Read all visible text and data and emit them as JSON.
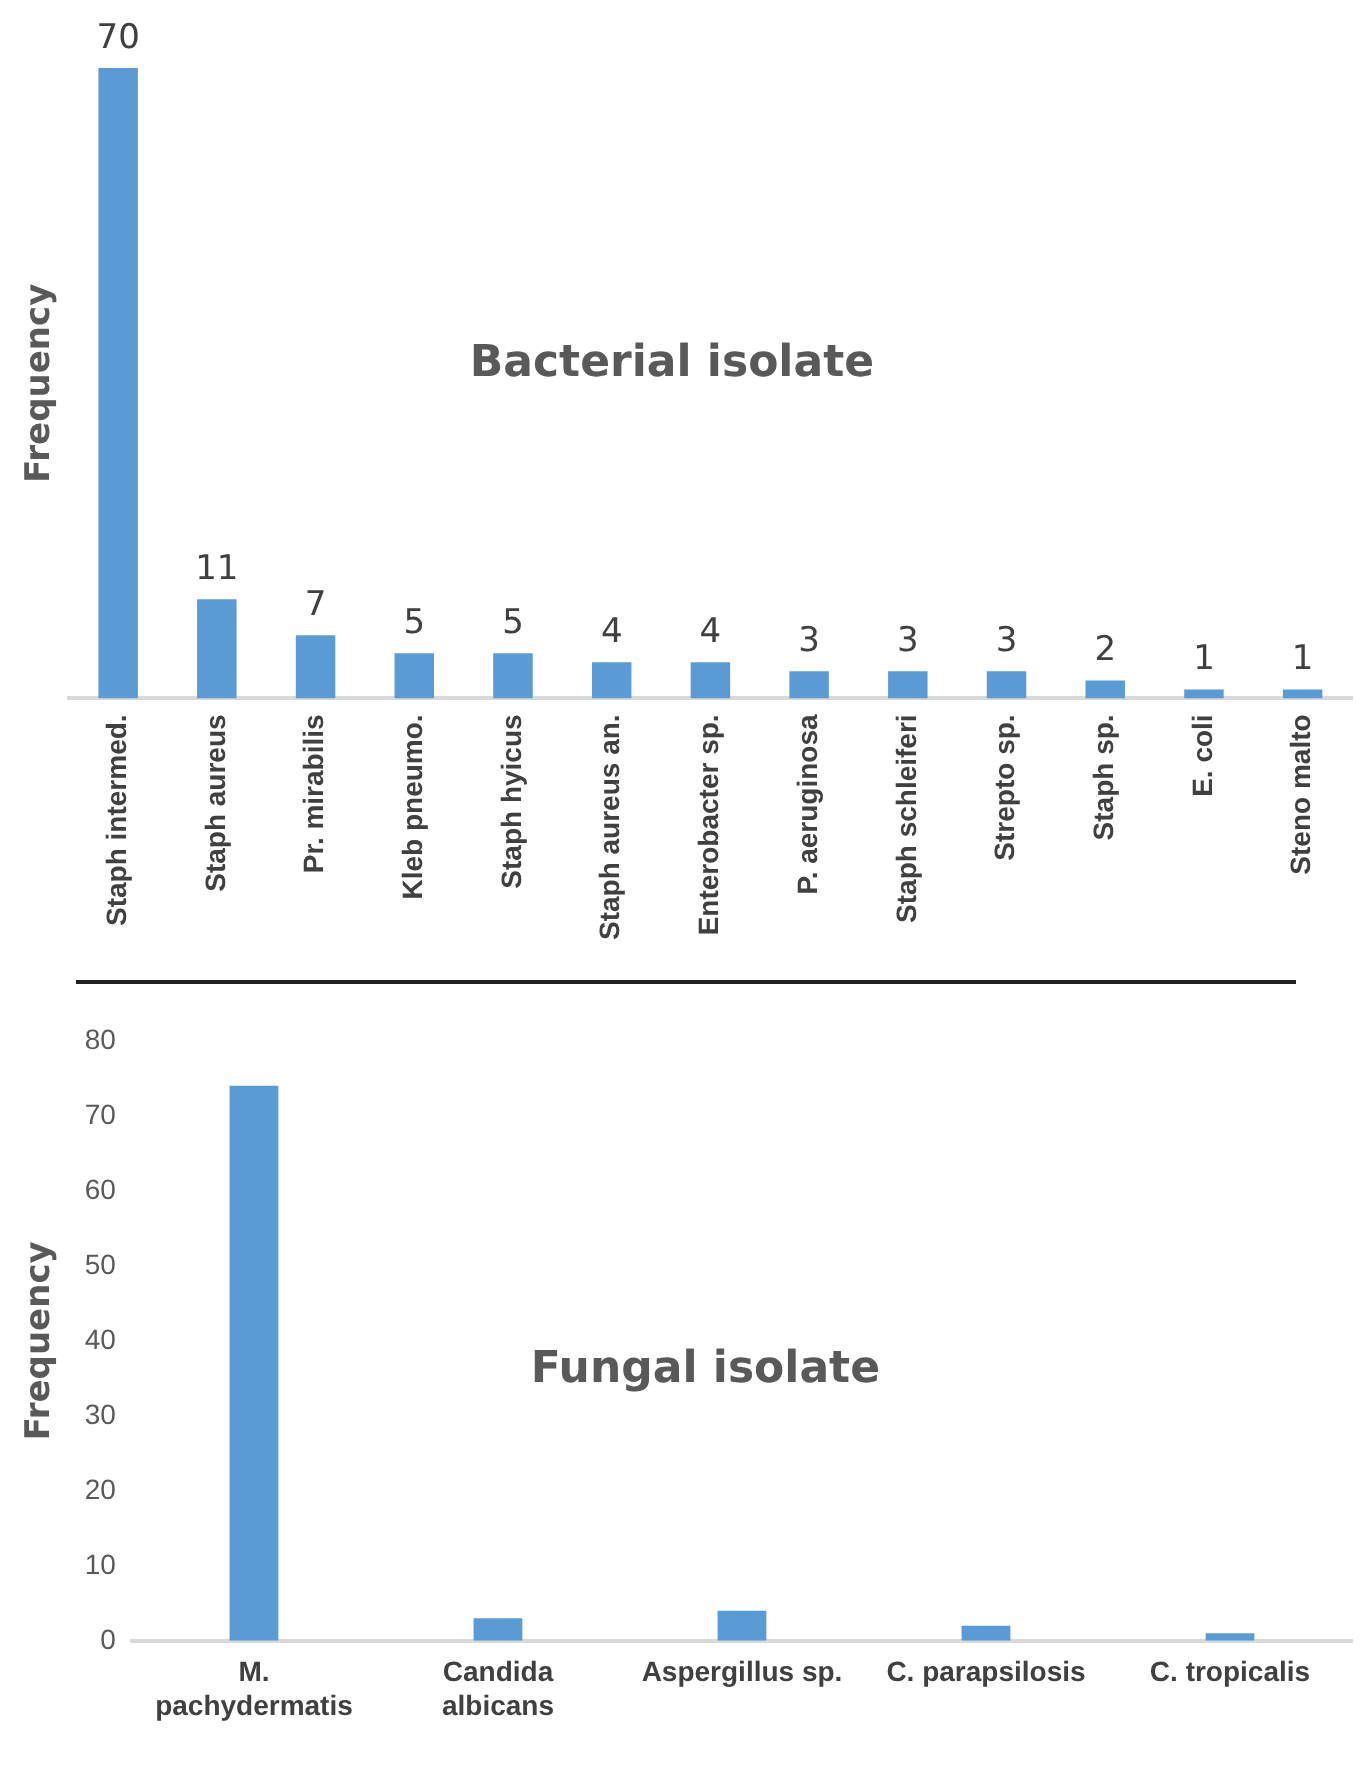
{
  "chart_data": [
    {
      "type": "bar",
      "title": "Bacterial isolate",
      "ylabel": "Frequency",
      "categories": [
        "Staph intermed.",
        "Staph aureus",
        "Pr. mirabilis",
        "Kleb pneumo.",
        "Staph hyicus",
        "Staph aureus an.",
        "Enterobacter sp.",
        "P. aeruginosa",
        "Staph schleiferi",
        "Strepto sp.",
        "Staph sp.",
        "E. coli",
        "Steno malto"
      ],
      "values": [
        70,
        11,
        7,
        5,
        5,
        4,
        4,
        3,
        3,
        3,
        2,
        1,
        1
      ],
      "color": "#5b9bd5",
      "data_labels": true,
      "grid": false,
      "legend": false,
      "tick_labels": "x"
    },
    {
      "type": "bar",
      "title": "Fungal isolate",
      "ylabel": "Frequency",
      "categories": [
        "M. pachydermatis",
        "Candida albicans",
        "Aspergillus sp.",
        "C. parapsilosis",
        "C. tropicalis"
      ],
      "values": [
        74,
        3,
        4,
        2,
        1
      ],
      "color": "#5b9bd5",
      "ylim": [
        0,
        80
      ],
      "yticks": [
        0,
        10,
        20,
        30,
        40,
        50,
        60,
        70,
        80
      ],
      "grid": false,
      "legend": false
    }
  ]
}
